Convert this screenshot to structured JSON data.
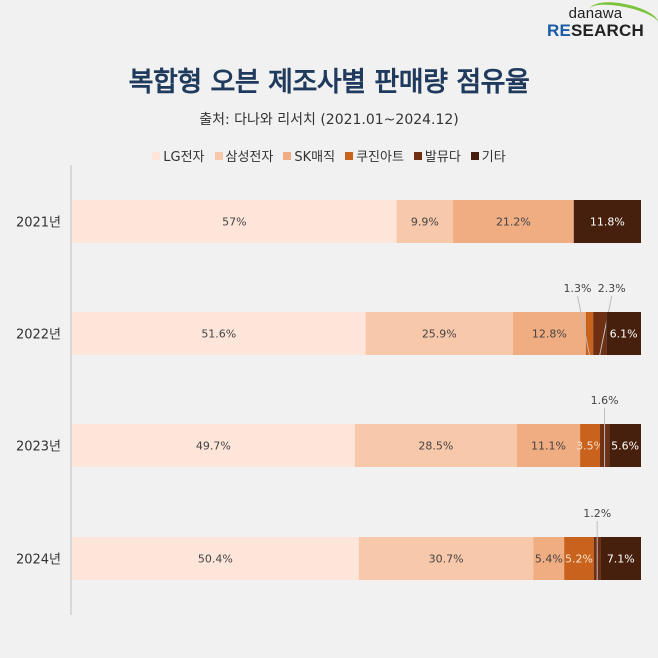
{
  "logo": {
    "line1": "danawa",
    "line2_accent": "RE",
    "line2_rest": "SEARCH"
  },
  "chart_data": {
    "type": "bar",
    "orientation": "horizontal-stacked-100",
    "title": "복합형 오븐 제조사별 판매량 점유율",
    "subtitle": "출처: 다나와 리서치 (2021.01~2024.12)",
    "legend_position": "top",
    "xlim": [
      0,
      100
    ],
    "categories": [
      "2021년",
      "2022년",
      "2023년",
      "2024년"
    ],
    "series": [
      {
        "name": "LG전자",
        "color": "#fde5d9",
        "text_color": "#444444",
        "values": [
          57,
          51.6,
          49.7,
          50.4
        ],
        "labels": [
          "57%",
          "51.6%",
          "49.7%",
          "50.4%"
        ]
      },
      {
        "name": "삼성전자",
        "color": "#f8c8ab",
        "text_color": "#444444",
        "values": [
          9.9,
          25.9,
          28.5,
          30.7
        ],
        "labels": [
          "9.9%",
          "25.9%",
          "28.5%",
          "30.7%"
        ]
      },
      {
        "name": "SK매직",
        "color": "#f0ad82",
        "text_color": "#444444",
        "values": [
          21.2,
          12.8,
          11.1,
          5.4
        ],
        "labels": [
          "21.2%",
          "12.8%",
          "11.1%",
          "5.4%"
        ]
      },
      {
        "name": "쿠진아트",
        "color": "#c8621c",
        "text_color": "#fbe3d4",
        "values": [
          0,
          1.3,
          3.5,
          5.2
        ],
        "labels": [
          "",
          "1.3%",
          "3.5%",
          "5.2%"
        ],
        "callout": [
          false,
          true,
          false,
          false
        ]
      },
      {
        "name": "발뮤다",
        "color": "#6e2f12",
        "text_color": "#ffffff",
        "values": [
          0,
          2.3,
          1.6,
          1.2
        ],
        "labels": [
          "",
          "2.3%",
          "1.6%",
          "1.2%"
        ],
        "callout": [
          false,
          true,
          true,
          true
        ]
      },
      {
        "name": "기타",
        "color": "#47200d",
        "text_color": "#ffffff",
        "values": [
          11.8,
          6.1,
          5.6,
          7.1
        ],
        "labels": [
          "11.8%",
          "6.1%",
          "5.6%",
          "7.1%"
        ]
      }
    ]
  }
}
